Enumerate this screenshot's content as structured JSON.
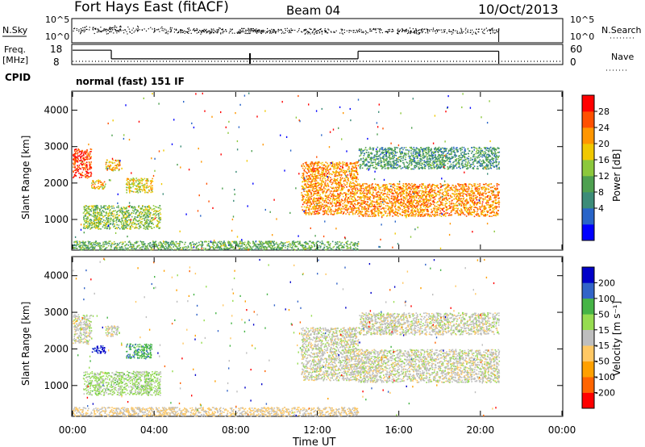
{
  "header": {
    "station": "Fort Hays East (fitACF)",
    "beam": "Beam 04",
    "date": "10/Oct/2013"
  },
  "strip": {
    "nsky_label": "N.Sky",
    "nsearch_label": "N.Search",
    "nsky_ticks": [
      "10^5",
      "10^0"
    ],
    "freq_label_1": "Freq.",
    "freq_label_2": "[MHz]",
    "freq_ticks": [
      "18",
      "8"
    ],
    "nave_ticks": [
      "60",
      "0"
    ],
    "nave_label": "Nave",
    "cpid_label": "CPID",
    "cpid_text": "normal (fast) 151 IF",
    "freq_steps": [
      {
        "t0": 0.0,
        "t1": 1.9,
        "mhz": 16.0
      },
      {
        "t0": 1.9,
        "t1": 14.0,
        "mhz": 10.9
      },
      {
        "t0": 14.0,
        "t1": 20.9,
        "mhz": 15.4
      }
    ]
  },
  "colors": {
    "power": [
      "#0000ff",
      "#2864c8",
      "#3c8c78",
      "#4ea050",
      "#8cc83c",
      "#f0c800",
      "#ff9600",
      "#ff5000",
      "#ff0000"
    ],
    "velocity": [
      "#ff0000",
      "#ff6400",
      "#ffa000",
      "#ffc864",
      "#bebebe",
      "#96dc50",
      "#46b446",
      "#3264c8",
      "#0000c8"
    ]
  },
  "chart_data": [
    {
      "type": "heatmap",
      "ylabel": "Slant Range [km]",
      "xlabel": "",
      "x_ticks": [
        "00:00",
        "04:00",
        "08:00",
        "12:00",
        "16:00",
        "20:00",
        "00:00"
      ],
      "xlim_hours": [
        0,
        24
      ],
      "y_ticks": [
        "1000",
        "2000",
        "3000",
        "4000"
      ],
      "ylim_km": [
        180,
        4500
      ],
      "colorbar": {
        "label": "Power [dB]",
        "ticks": [
          "28",
          "24",
          "20",
          "16",
          "12",
          "8",
          "4"
        ],
        "range": [
          0,
          30
        ]
      },
      "features": [
        {
          "t0": 0.0,
          "t1": 0.9,
          "r0": 2150,
          "r1": 2950,
          "value_db": 27
        },
        {
          "t0": 1.6,
          "t1": 2.3,
          "r0": 2350,
          "r1": 2650,
          "value_db": 20
        },
        {
          "t0": 0.9,
          "t1": 1.6,
          "r0": 1850,
          "r1": 2100,
          "value_db": 20
        },
        {
          "t0": 2.6,
          "t1": 3.9,
          "r0": 1750,
          "r1": 2150,
          "value_db": 18
        },
        {
          "t0": 0.5,
          "t1": 4.3,
          "r0": 750,
          "r1": 1400,
          "value_db": 14
        },
        {
          "t0": 11.2,
          "t1": 14.0,
          "r0": 1150,
          "r1": 2600,
          "value_db": 22
        },
        {
          "t0": 14.0,
          "t1": 20.9,
          "r0": 1100,
          "r1": 2000,
          "value_db": 22
        },
        {
          "t0": 14.0,
          "t1": 20.9,
          "r0": 2400,
          "r1": 3000,
          "value_db": 10
        },
        {
          "t0": 0.0,
          "t1": 14.0,
          "r0": 180,
          "r1": 420,
          "value_db": 12
        }
      ]
    },
    {
      "type": "heatmap",
      "ylabel": "Slant Range [km]",
      "xlabel": "Time UT",
      "x_ticks": [
        "00:00",
        "04:00",
        "08:00",
        "12:00",
        "16:00",
        "20:00",
        "00:00"
      ],
      "xlim_hours": [
        0,
        24
      ],
      "y_ticks": [
        "1000",
        "2000",
        "3000",
        "4000"
      ],
      "ylim_km": [
        180,
        4500
      ],
      "colorbar": {
        "label": "Velocity [m s⁻¹]",
        "ticks": [
          "200",
          "100",
          "50",
          "15",
          "-15",
          "-50",
          "-100",
          "-200"
        ],
        "range": [
          -250,
          250
        ]
      },
      "features": [
        {
          "t0": 0.0,
          "t1": 0.9,
          "r0": 2150,
          "r1": 2950,
          "value_ms": 0
        },
        {
          "t0": 0.9,
          "t1": 1.6,
          "r0": 1900,
          "r1": 2100,
          "value_ms": 220
        },
        {
          "t0": 1.6,
          "t1": 2.3,
          "r0": 2350,
          "r1": 2650,
          "value_ms": 0
        },
        {
          "t0": 2.6,
          "t1": 3.9,
          "r0": 1750,
          "r1": 2150,
          "value_ms": 120
        },
        {
          "t0": 0.5,
          "t1": 4.3,
          "r0": 750,
          "r1": 1400,
          "value_ms": 45
        },
        {
          "t0": 11.2,
          "t1": 14.0,
          "r0": 1150,
          "r1": 2600,
          "value_ms": 0
        },
        {
          "t0": 14.0,
          "t1": 20.9,
          "r0": 1100,
          "r1": 2000,
          "value_ms": 0
        },
        {
          "t0": 14.0,
          "t1": 20.9,
          "r0": 2400,
          "r1": 3000,
          "value_ms": 0
        },
        {
          "t0": 0.0,
          "t1": 14.0,
          "r0": 180,
          "r1": 420,
          "value_ms": -30
        }
      ]
    }
  ]
}
